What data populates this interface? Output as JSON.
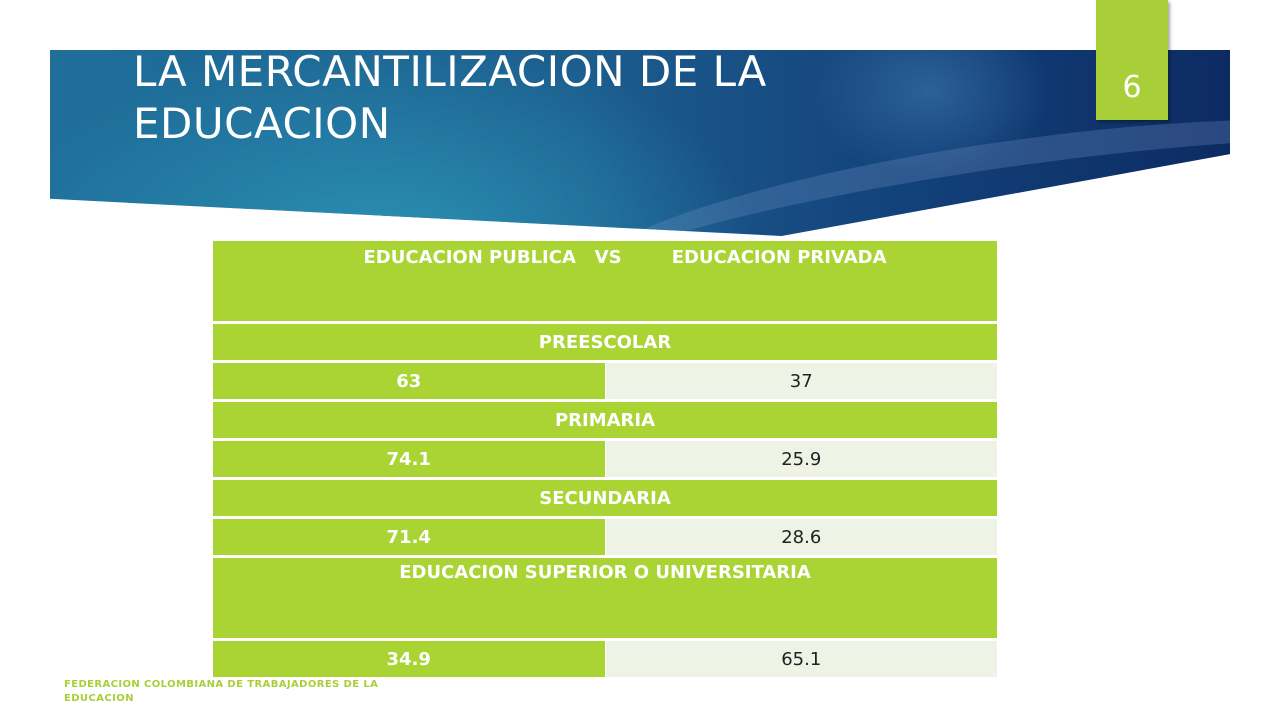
{
  "slide": {
    "title": "LA MERCANTILIZACION DE LA EDUCACION",
    "page_number": "6",
    "footer": "FEDERACION COLOMBIANA DE TRABAJADORES DE LA EDUCACION"
  },
  "table": {
    "header": "EDUCACION PUBLICA   VS        EDUCACION PRIVADA",
    "sections": [
      {
        "category": "PREESCOLAR",
        "publica": "63",
        "privada": "37"
      },
      {
        "category": "PRIMARIA",
        "publica": "74.1",
        "privada": "25.9"
      },
      {
        "category": "SECUNDARIA",
        "publica": "71.4",
        "privada": "28.6"
      },
      {
        "category": "EDUCACION SUPERIOR O UNIVERSITARIA",
        "publica": "34.9",
        "privada": "65.1"
      }
    ]
  },
  "colors": {
    "accent_green": "#a9d433",
    "banner_blue": "#1c5d8e",
    "cell_light": "#eef3e6"
  }
}
